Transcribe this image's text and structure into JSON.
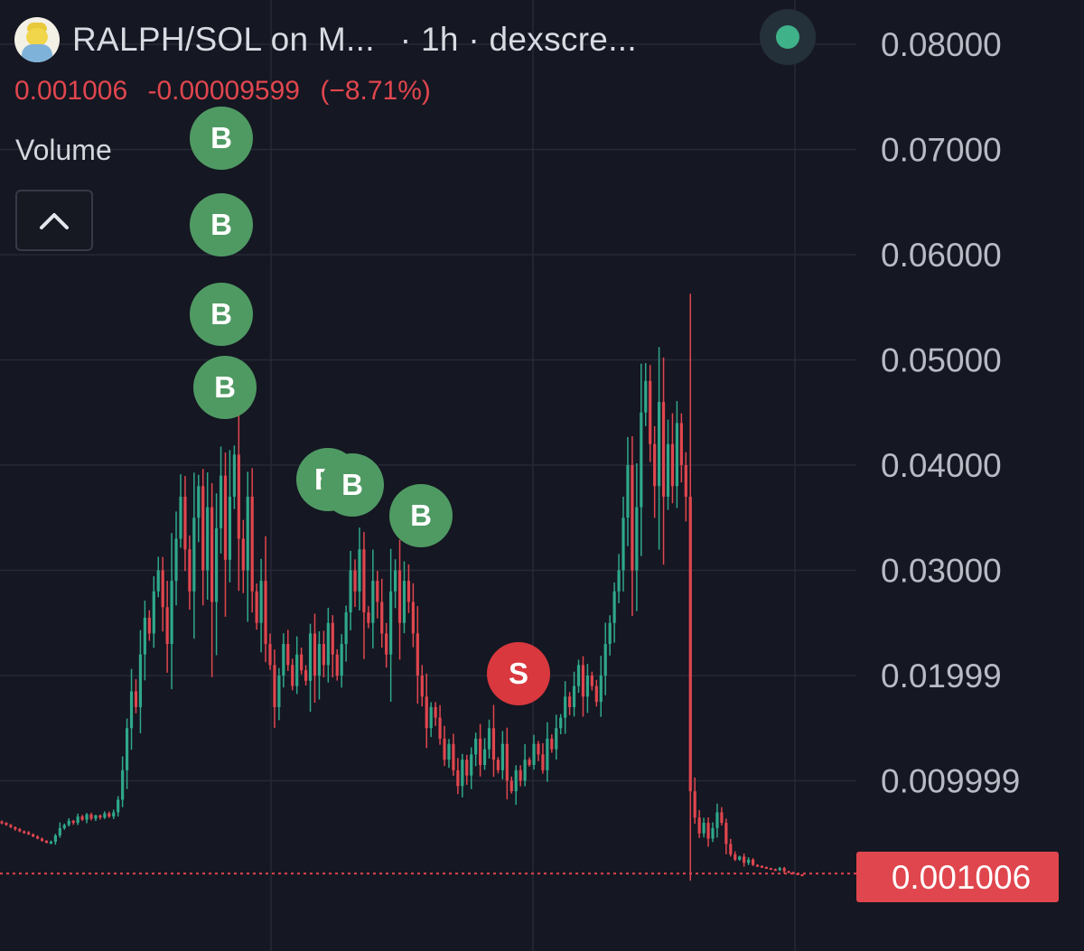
{
  "header": {
    "title": "RALPH/SOL on M...",
    "interval": "· 1h · dexscre...",
    "logo_icon": "ralph-avatar-icon",
    "status_icon": "status-dot-icon",
    "status_color": "#3fb28a"
  },
  "price": {
    "last": "0.001006",
    "change": "-0.00009599",
    "change_pct": "(−8.71%)",
    "color": "#e0464e"
  },
  "volume_label": "Volume",
  "collapse_icon": "chevron-up-icon",
  "markers": [
    {
      "label": "B",
      "kind": "buy"
    },
    {
      "label": "B",
      "kind": "buy"
    },
    {
      "label": "B",
      "kind": "buy"
    },
    {
      "label": "B",
      "kind": "buy"
    },
    {
      "label": "B",
      "kind": "buy"
    },
    {
      "label": "B",
      "kind": "buy"
    },
    {
      "label": "B",
      "kind": "buy"
    },
    {
      "label": "S",
      "kind": "sell"
    }
  ],
  "chart_data": {
    "type": "candlestick",
    "interval": "1h",
    "ylim": [
      0,
      0.085
    ],
    "yticks": [
      "0.08000",
      "0.07000",
      "0.06000",
      "0.05000",
      "0.04000",
      "0.03000",
      "0.01999",
      "0.009999"
    ],
    "y_values": [
      0.08,
      0.07,
      0.06,
      0.05,
      0.04,
      0.03,
      0.01999,
      0.009999
    ],
    "last_price_label": "0.001006",
    "last_price": 0.001006,
    "grid": true,
    "colors": {
      "up": "#2fa88a",
      "down": "#e0464e",
      "background": "#151722",
      "grid": "#262936",
      "axis_text": "#b8bac4"
    },
    "closes": [
      0.006,
      0.0058,
      0.0056,
      0.0054,
      0.0052,
      0.0051,
      0.0049,
      0.0047,
      0.0045,
      0.0043,
      0.0041,
      0.0042,
      0.0048,
      0.0055,
      0.0058,
      0.0062,
      0.006,
      0.0066,
      0.0063,
      0.0068,
      0.0064,
      0.0067,
      0.0065,
      0.0069,
      0.0066,
      0.007,
      0.0082,
      0.011,
      0.015,
      0.0185,
      0.017,
      0.022,
      0.0255,
      0.024,
      0.028,
      0.03,
      0.0265,
      0.023,
      0.029,
      0.033,
      0.037,
      0.032,
      0.028,
      0.035,
      0.038,
      0.03,
      0.036,
      0.027,
      0.034,
      0.039,
      0.031,
      0.037,
      0.041,
      0.033,
      0.03,
      0.037,
      0.028,
      0.025,
      0.029,
      0.023,
      0.021,
      0.017,
      0.02,
      0.023,
      0.021,
      0.019,
      0.022,
      0.0205,
      0.0195,
      0.024,
      0.02,
      0.023,
      0.021,
      0.025,
      0.022,
      0.02,
      0.023,
      0.026,
      0.03,
      0.028,
      0.032,
      0.026,
      0.025,
      0.029,
      0.027,
      0.024,
      0.022,
      0.028,
      0.03,
      0.025,
      0.029,
      0.027,
      0.024,
      0.02,
      0.018,
      0.015,
      0.017,
      0.016,
      0.014,
      0.012,
      0.0135,
      0.011,
      0.0095,
      0.012,
      0.0105,
      0.0125,
      0.014,
      0.0115,
      0.013,
      0.015,
      0.012,
      0.011,
      0.0135,
      0.01,
      0.009,
      0.011,
      0.01,
      0.012,
      0.0115,
      0.0135,
      0.0125,
      0.011,
      0.014,
      0.013,
      0.015,
      0.016,
      0.018,
      0.017,
      0.019,
      0.021,
      0.018,
      0.02,
      0.019,
      0.0175,
      0.02,
      0.023,
      0.025,
      0.028,
      0.03,
      0.035,
      0.04,
      0.03,
      0.036,
      0.045,
      0.048,
      0.042,
      0.038,
      0.046,
      0.037,
      0.042,
      0.038,
      0.044,
      0.04,
      0.037,
      0.009,
      0.0065,
      0.005,
      0.006,
      0.0045,
      0.0055,
      0.007,
      0.006,
      0.004,
      0.003,
      0.0025,
      0.0028,
      0.0022,
      0.0025,
      0.002,
      0.0019,
      0.0018,
      0.0017,
      0.0016,
      0.0015,
      0.0017,
      0.0014,
      0.0013,
      0.0012,
      0.0011,
      0.001
    ]
  }
}
